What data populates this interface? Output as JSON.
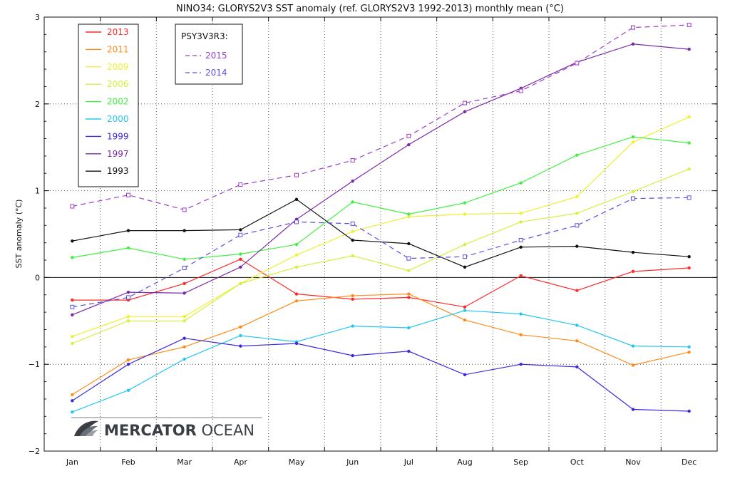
{
  "chart_data": {
    "type": "line",
    "title": "NINO34: GLORYS2V3 SST anomaly (ref. GLORYS2V3 1992-2013) monthly mean (°C)",
    "xlabel": "",
    "ylabel": "SST anomaly (°C)",
    "categories": [
      "Jan",
      "Feb",
      "Mar",
      "Apr",
      "May",
      "Jun",
      "Jul",
      "Aug",
      "Sep",
      "Oct",
      "Nov",
      "Dec"
    ],
    "ylim": [
      -2,
      3
    ],
    "yticks": [
      -2,
      -1,
      0,
      1,
      2,
      3
    ],
    "grid": true,
    "legend_position": "top-left",
    "series": [
      {
        "name": "2013",
        "color": "#ff2a2a",
        "marker": "dot",
        "dashed": false,
        "values": [
          -0.26,
          -0.26,
          -0.07,
          0.21,
          -0.19,
          -0.25,
          -0.23,
          -0.34,
          0.02,
          -0.15,
          0.07,
          0.11
        ]
      },
      {
        "name": "2011",
        "color": "#ff8c1a",
        "marker": "dot",
        "dashed": false,
        "values": [
          -1.35,
          -0.95,
          -0.8,
          -0.57,
          -0.27,
          -0.21,
          -0.19,
          -0.49,
          -0.66,
          -0.73,
          -1.01,
          -0.86
        ]
      },
      {
        "name": "2009",
        "color": "#f0f030",
        "marker": "dot",
        "dashed": false,
        "values": [
          -0.68,
          -0.45,
          -0.45,
          -0.07,
          0.26,
          0.53,
          0.7,
          0.73,
          0.74,
          0.93,
          1.56,
          1.85
        ]
      },
      {
        "name": "2006",
        "color": "#d6f03c",
        "marker": "dot",
        "dashed": false,
        "values": [
          -0.76,
          -0.5,
          -0.5,
          -0.07,
          0.12,
          0.25,
          0.08,
          0.38,
          0.64,
          0.74,
          0.99,
          1.25
        ]
      },
      {
        "name": "2002",
        "color": "#40f040",
        "marker": "dot",
        "dashed": false,
        "values": [
          0.23,
          0.34,
          0.21,
          0.27,
          0.38,
          0.87,
          0.73,
          0.86,
          1.09,
          1.41,
          1.62,
          1.55
        ]
      },
      {
        "name": "2000",
        "color": "#26c6f0",
        "marker": "dot",
        "dashed": false,
        "values": [
          -1.55,
          -1.3,
          -0.94,
          -0.67,
          -0.74,
          -0.56,
          -0.58,
          -0.38,
          -0.42,
          -0.55,
          -0.79,
          -0.8
        ]
      },
      {
        "name": "1999",
        "color": "#3a2ae0",
        "marker": "dot",
        "dashed": false,
        "values": [
          -1.42,
          -1.0,
          -0.7,
          -0.79,
          -0.76,
          -0.9,
          -0.85,
          -1.12,
          -1.0,
          -1.03,
          -1.52,
          -1.54
        ]
      },
      {
        "name": "1997",
        "color": "#7a2aa6",
        "marker": "dot",
        "dashed": false,
        "values": [
          -0.43,
          -0.17,
          -0.18,
          0.12,
          0.67,
          1.11,
          1.53,
          1.91,
          2.18,
          2.48,
          2.69,
          2.63
        ]
      },
      {
        "name": "1993",
        "color": "#111111",
        "marker": "dot",
        "dashed": false,
        "values": [
          0.42,
          0.54,
          0.54,
          0.55,
          0.9,
          0.43,
          0.39,
          0.12,
          0.35,
          0.36,
          0.29,
          0.24
        ]
      },
      {
        "name": "2015",
        "color": "#9a3ec8",
        "marker": "square",
        "dashed": true,
        "values": [
          0.82,
          0.95,
          0.78,
          1.07,
          1.18,
          1.35,
          1.63,
          2.01,
          2.15,
          2.47,
          2.88,
          2.91
        ]
      },
      {
        "name": "2014",
        "color": "#5a50e0",
        "marker": "square",
        "dashed": true,
        "values": [
          -0.34,
          -0.23,
          0.11,
          0.49,
          0.64,
          0.62,
          0.22,
          0.24,
          0.43,
          0.6,
          0.91,
          0.92
        ]
      }
    ],
    "legend_solid": [
      "2013",
      "2011",
      "2009",
      "2006",
      "2002",
      "2000",
      "1999",
      "1997",
      "1993"
    ],
    "legend_dashed_title": "PSY3V3R3:",
    "legend_dashed": [
      "2015",
      "2014"
    ]
  },
  "logo": {
    "brand": "MERCATOR",
    "suffix": "OCEAN"
  }
}
